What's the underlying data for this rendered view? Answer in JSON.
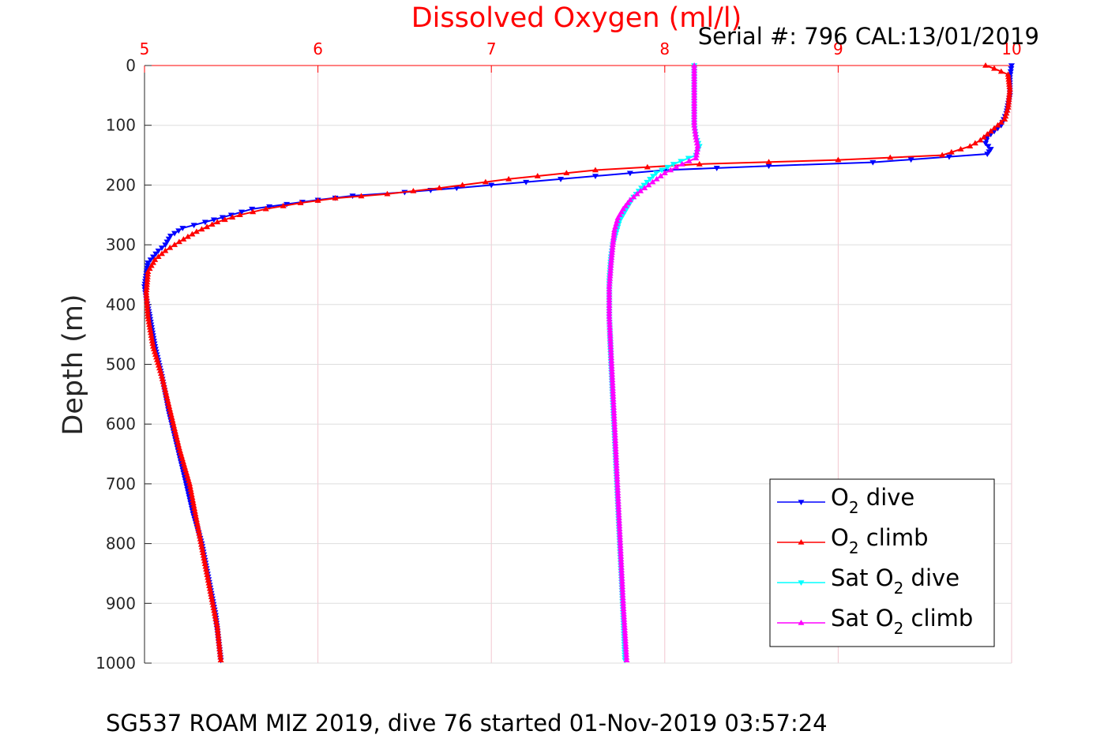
{
  "chart_data": {
    "type": "line",
    "title": "Dissolved Oxygen (ml/l)",
    "subtitle": "Serial #: 796  CAL:13/01/2019",
    "footer": "SG537 ROAM MIZ 2019, dive 76 started 01-Nov-2019 03:57:24",
    "ylabel": "Depth (m)",
    "xlim": [
      5,
      10
    ],
    "ylim": [
      0,
      1000
    ],
    "y_reversed": true,
    "xticks": [
      "5",
      "6",
      "7",
      "8",
      "9",
      "10"
    ],
    "yticks": [
      "0",
      "100",
      "200",
      "300",
      "400",
      "500",
      "600",
      "700",
      "800",
      "900",
      "1000"
    ],
    "grid": true,
    "legend_position": "bottom-right",
    "series": [
      {
        "name": "O2 dive",
        "label_main": "O",
        "label_sub": "2",
        "label_tail": " dive",
        "color": "#0000ff",
        "marker": "triangle-down",
        "x": [
          10.0,
          9.99,
          9.99,
          9.97,
          9.94,
          9.9,
          9.86,
          9.85,
          9.88,
          9.86,
          9.2,
          8.6,
          8.0,
          7.6,
          7.2,
          6.8,
          6.5,
          6.2,
          6.0,
          5.82,
          5.62,
          5.5,
          5.35,
          5.22,
          5.15,
          5.12,
          5.08,
          5.02,
          5.0,
          5.01,
          5.03,
          5.06,
          5.1,
          5.14,
          5.19,
          5.24,
          5.28,
          5.33,
          5.37,
          5.41,
          5.44
        ],
        "y": [
          0,
          20,
          50,
          80,
          100,
          110,
          120,
          130,
          140,
          148,
          162,
          168,
          175,
          185,
          195,
          205,
          212,
          218,
          225,
          232,
          240,
          250,
          262,
          272,
          285,
          300,
          310,
          330,
          370,
          390,
          420,
          470,
          520,
          580,
          640,
          700,
          750,
          800,
          860,
          920,
          995
        ]
      },
      {
        "name": "O2 climb",
        "label_main": "O",
        "label_sub": "2",
        "label_tail": " climb",
        "color": "#ff0000",
        "marker": "triangle-up",
        "x": [
          9.85,
          9.9,
          9.98,
          9.99,
          9.98,
          9.96,
          9.88,
          9.82,
          9.76,
          9.6,
          9.0,
          8.2,
          7.6,
          7.1,
          6.7,
          6.4,
          6.1,
          5.9,
          5.7,
          5.55,
          5.42,
          5.3,
          5.2,
          5.12,
          5.06,
          5.02,
          5.01,
          5.02,
          5.05,
          5.1,
          5.15,
          5.2,
          5.26,
          5.3,
          5.34,
          5.38,
          5.42,
          5.44
        ],
        "y": [
          0,
          5,
          15,
          40,
          70,
          90,
          110,
          125,
          135,
          150,
          158,
          165,
          175,
          190,
          205,
          215,
          222,
          230,
          240,
          250,
          262,
          278,
          295,
          310,
          325,
          345,
          380,
          420,
          470,
          520,
          580,
          640,
          700,
          760,
          820,
          880,
          940,
          995
        ]
      },
      {
        "name": "Sat O2 dive",
        "label_main": "Sat O",
        "label_sub": "2",
        "label_tail": " dive",
        "color": "#00ffff",
        "marker": "triangle-down",
        "x": [
          8.17,
          8.17,
          8.17,
          8.18,
          8.2,
          8.18,
          8.05,
          7.95,
          7.88,
          7.82,
          7.78,
          7.74,
          7.72,
          7.7,
          7.69,
          7.68,
          7.68,
          7.69,
          7.7,
          7.71,
          7.72,
          7.73,
          7.74,
          7.75,
          7.76,
          7.77
        ],
        "y": [
          0,
          50,
          100,
          120,
          135,
          150,
          165,
          180,
          200,
          220,
          240,
          260,
          280,
          300,
          320,
          360,
          420,
          500,
          560,
          620,
          680,
          740,
          800,
          860,
          920,
          995
        ]
      },
      {
        "name": "Sat O2 climb",
        "label_main": "Sat O",
        "label_sub": "2",
        "label_tail": " climb",
        "color": "#ff00ff",
        "marker": "triangle-up",
        "x": [
          8.17,
          8.17,
          8.17,
          8.18,
          8.19,
          8.18,
          8.1,
          8.0,
          7.93,
          7.86,
          7.8,
          7.76,
          7.73,
          7.71,
          7.7,
          7.69,
          7.68,
          7.68,
          7.69,
          7.7,
          7.71,
          7.72,
          7.73,
          7.74,
          7.75,
          7.76,
          7.78
        ],
        "y": [
          0,
          50,
          100,
          120,
          135,
          155,
          165,
          180,
          195,
          210,
          225,
          240,
          255,
          275,
          300,
          330,
          370,
          420,
          480,
          540,
          600,
          660,
          720,
          780,
          840,
          900,
          995
        ]
      }
    ]
  }
}
